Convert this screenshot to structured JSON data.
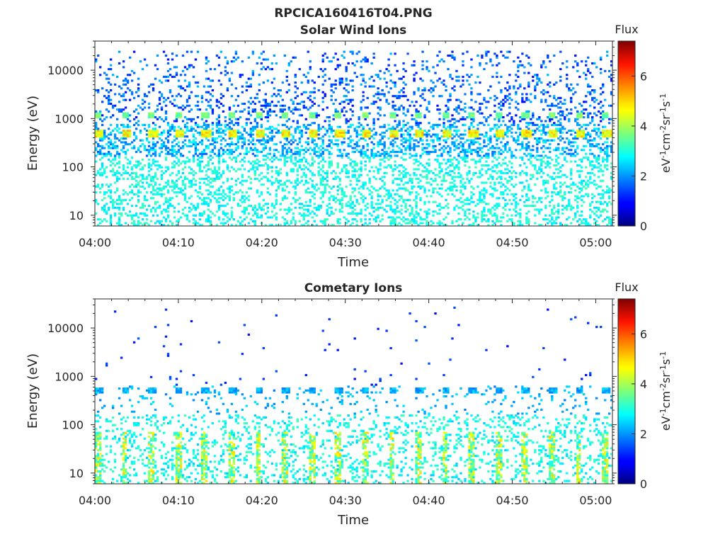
{
  "figure_title": "RPCICA160416T04.PNG",
  "colorbar": {
    "title": "Flux",
    "unit_label": "eV-1cm-2sr-1s-1",
    "ticks": [
      0,
      2,
      4,
      6
    ],
    "range": [
      0,
      7.4
    ],
    "colormap": "jet"
  },
  "chart_data": [
    {
      "type": "heatmap",
      "title": "Solar Wind Ions",
      "xlabel": "Time",
      "ylabel": "Energy (eV)",
      "x_ticks": [
        "04:00",
        "04:10",
        "04:20",
        "04:30",
        "04:40",
        "04:50",
        "05:00"
      ],
      "xlim_minutes": [
        0,
        62
      ],
      "y_ticks": [
        "10",
        "100",
        "1000",
        "10000"
      ],
      "ylim_eV": [
        6,
        40000
      ],
      "y_scale": "log",
      "bands": [
        {
          "energy_eV": 500,
          "flux": 4.5,
          "period_min": 3.2,
          "description": "bright periodic solar wind peak"
        },
        {
          "energy_eV": 1200,
          "flux": 3.5,
          "period_min": 3.2
        },
        {
          "energy_eV": [
            1000,
            20000
          ],
          "flux": [
            1.0,
            2.0
          ],
          "description": "sparse background"
        },
        {
          "energy_eV": [
            6,
            150
          ],
          "flux": [
            2.6,
            3.2
          ],
          "description": "low energy streaks"
        }
      ]
    },
    {
      "type": "heatmap",
      "title": "Cometary Ions",
      "xlabel": "Time",
      "ylabel": "Energy (eV)",
      "x_ticks": [
        "04:00",
        "04:10",
        "04:20",
        "04:30",
        "04:40",
        "04:50",
        "05:00"
      ],
      "xlim_minutes": [
        0,
        62
      ],
      "y_ticks": [
        "10",
        "100",
        "1000",
        "10000"
      ],
      "ylim_eV": [
        6,
        40000
      ],
      "y_scale": "log",
      "bands": [
        {
          "energy_eV": 500,
          "flux": 2.2,
          "period_min": 3.2,
          "description": "periodic band"
        },
        {
          "energy_eV": [
            6,
            60
          ],
          "flux": [
            3.0,
            5.0
          ],
          "period_min": 3.2,
          "description": "cometary ion bursts"
        },
        {
          "energy_eV": [
            1000,
            30000
          ],
          "flux": [
            1.0,
            1.5
          ],
          "description": "very sparse high energy dots"
        }
      ]
    }
  ]
}
